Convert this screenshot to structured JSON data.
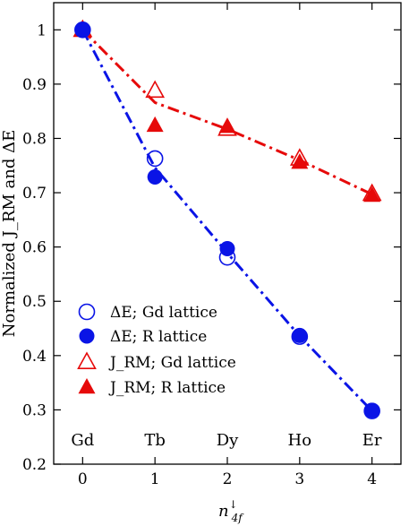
{
  "chart_data": {
    "type": "scatter",
    "xlabel": "n",
    "xlabel_sup": "↓",
    "xlabel_sub": "4f",
    "ylabel": "Normalized J_RM and ΔE",
    "xlim": [
      -0.4,
      4.4
    ],
    "ylim": [
      0.2,
      1.05
    ],
    "xticks": [
      0,
      1,
      2,
      3,
      4
    ],
    "yticks": [
      0.2,
      0.3,
      0.4,
      0.5,
      0.6,
      0.7,
      0.8,
      0.9,
      1.0
    ],
    "ytick_labels": [
      "0.2",
      "0.3",
      "0.4",
      "0.5",
      "0.6",
      "0.7",
      "0.8",
      "0.9",
      "1"
    ],
    "element_labels": [
      "Gd",
      "Tb",
      "Dy",
      "Ho",
      "Er"
    ],
    "legend_position": "lower-left",
    "series": [
      {
        "name": "ΔE; Gd lattice",
        "marker": "open-circle",
        "color": "#0a14e6",
        "x": [
          0,
          1,
          2,
          3,
          4
        ],
        "y": [
          1.0,
          0.763,
          0.581,
          0.435,
          0.298
        ]
      },
      {
        "name": "ΔE; R lattice",
        "marker": "filled-circle",
        "color": "#0a14e6",
        "x": [
          0,
          1,
          2,
          3,
          4
        ],
        "y": [
          1.0,
          0.729,
          0.597,
          0.437,
          0.299
        ]
      },
      {
        "name": "J_RM; Gd lattice",
        "marker": "open-triangle",
        "color": "#e60a0a",
        "x": [
          0,
          1,
          2,
          3,
          4
        ],
        "y": [
          1.0,
          0.888,
          0.818,
          0.763,
          0.698
        ]
      },
      {
        "name": "J_RM; R lattice",
        "marker": "filled-triangle",
        "color": "#e60a0a",
        "x": [
          0,
          1,
          2,
          3,
          4
        ],
        "y": [
          1.0,
          0.824,
          0.822,
          0.756,
          0.695
        ]
      }
    ],
    "fit_lines": [
      {
        "color": "#0a14e6",
        "style": "dash-dot",
        "x": [
          0,
          1,
          2,
          3,
          4
        ],
        "y": [
          1.0,
          0.746,
          0.589,
          0.436,
          0.298
        ]
      },
      {
        "color": "#e60a0a",
        "style": "dash-dot",
        "x": [
          0,
          1,
          2,
          3,
          4
        ],
        "y": [
          1.0,
          0.866,
          0.817,
          0.76,
          0.697
        ]
      }
    ]
  }
}
